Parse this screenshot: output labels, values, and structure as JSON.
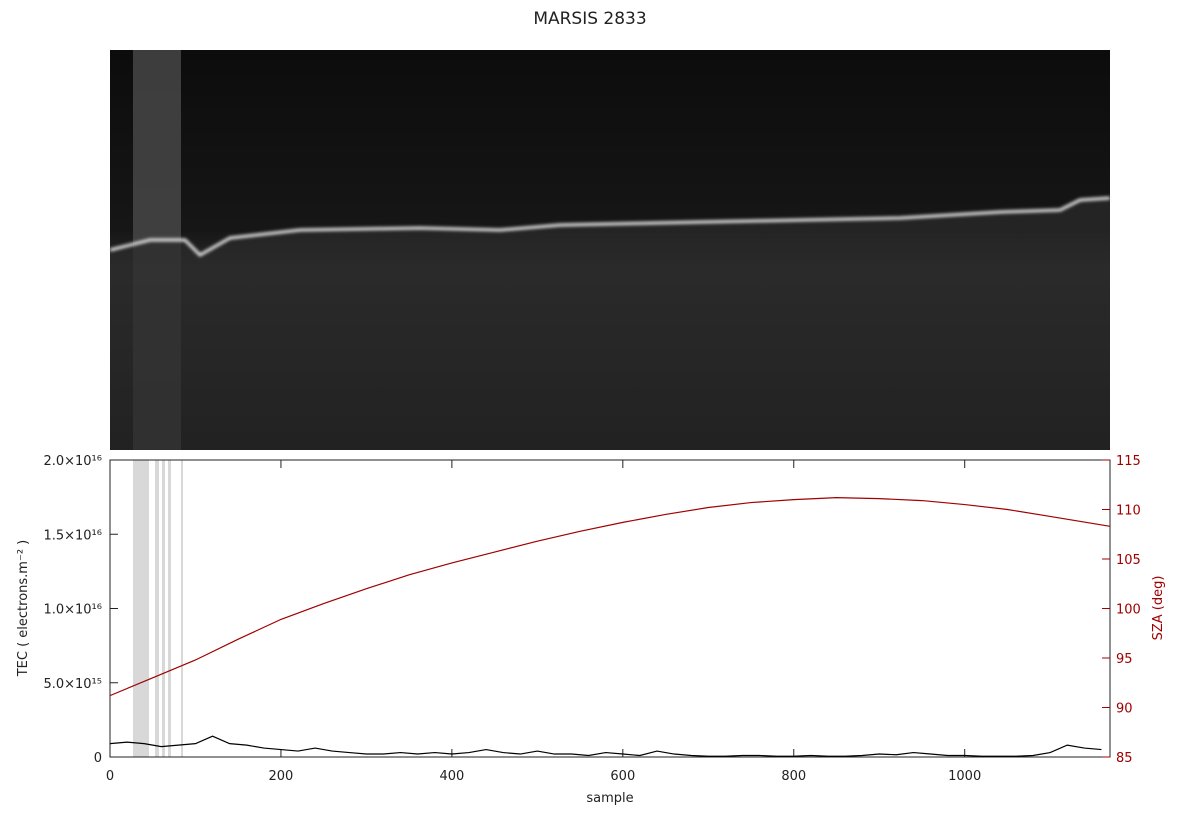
{
  "chart_data": {
    "type": "line",
    "title": "MARSIS 2833",
    "xlabel": "sample",
    "ylabel": "TEC ( electrons.m⁻² )",
    "y2label": "SZA (deg)",
    "xlim": [
      0,
      1170
    ],
    "xticks": [
      0,
      200,
      400,
      600,
      800,
      1000
    ],
    "ylim": [
      0,
      2e+16
    ],
    "yticks": [
      0,
      {
        "value": 5000000000000000.0,
        "label": "5.0×10¹⁵"
      },
      {
        "value": 1e+16,
        "label": "1.0×10¹⁶"
      },
      {
        "value": 1.5e+16,
        "label": "1.5×10¹⁶"
      },
      {
        "value": 2e+16,
        "label": "2.0×10¹⁶"
      }
    ],
    "y2lim": [
      85,
      115
    ],
    "y2ticks": [
      85,
      90,
      95,
      100,
      105,
      110,
      115
    ],
    "y2color": "#a00000",
    "series": [
      {
        "name": "TEC",
        "color": "#000000",
        "x": [
          0,
          20,
          40,
          60,
          80,
          100,
          120,
          140,
          160,
          180,
          200,
          220,
          240,
          260,
          280,
          300,
          320,
          340,
          360,
          380,
          400,
          420,
          440,
          460,
          480,
          500,
          520,
          540,
          560,
          580,
          600,
          620,
          640,
          660,
          680,
          700,
          720,
          740,
          760,
          780,
          800,
          820,
          840,
          860,
          880,
          900,
          920,
          940,
          960,
          980,
          1000,
          1020,
          1040,
          1060,
          1080,
          1100,
          1120,
          1140,
          1160
        ],
        "values": [
          900000000000000.0,
          1000000000000000.0,
          900000000000000.0,
          700000000000000.0,
          800000000000000.0,
          900000000000000.0,
          1400000000000000.0,
          900000000000000.0,
          800000000000000.0,
          600000000000000.0,
          500000000000000.0,
          400000000000000.0,
          600000000000000.0,
          400000000000000.0,
          300000000000000.0,
          200000000000000.0,
          200000000000000.0,
          300000000000000.0,
          200000000000000.0,
          300000000000000.0,
          200000000000000.0,
          300000000000000.0,
          500000000000000.0,
          300000000000000.0,
          200000000000000.0,
          400000000000000.0,
          200000000000000.0,
          200000000000000.0,
          100000000000000.0,
          300000000000000.0,
          200000000000000.0,
          100000000000000.0,
          400000000000000.0,
          200000000000000.0,
          100000000000000.0,
          50000000000000.0,
          50000000000000.0,
          100000000000000.0,
          100000000000000.0,
          50000000000000.0,
          50000000000000.0,
          100000000000000.0,
          50000000000000.0,
          50000000000000.0,
          100000000000000.0,
          200000000000000.0,
          150000000000000.0,
          300000000000000.0,
          200000000000000.0,
          100000000000000.0,
          100000000000000.0,
          50000000000000.0,
          50000000000000.0,
          50000000000000.0,
          100000000000000.0,
          300000000000000.0,
          800000000000000.0,
          600000000000000.0,
          500000000000000.0
        ]
      },
      {
        "name": "SZA",
        "color": "#a00000",
        "axis": "y2",
        "x": [
          0,
          50,
          100,
          150,
          200,
          250,
          300,
          350,
          400,
          450,
          500,
          550,
          600,
          650,
          700,
          750,
          800,
          850,
          900,
          950,
          1000,
          1050,
          1100,
          1170
        ],
        "values": [
          91.2,
          93.0,
          94.8,
          96.9,
          98.9,
          100.5,
          102.0,
          103.4,
          104.6,
          105.7,
          106.8,
          107.8,
          108.7,
          109.5,
          110.2,
          110.7,
          111.0,
          111.2,
          111.1,
          110.9,
          110.5,
          110.0,
          109.3,
          108.3
        ]
      }
    ]
  }
}
